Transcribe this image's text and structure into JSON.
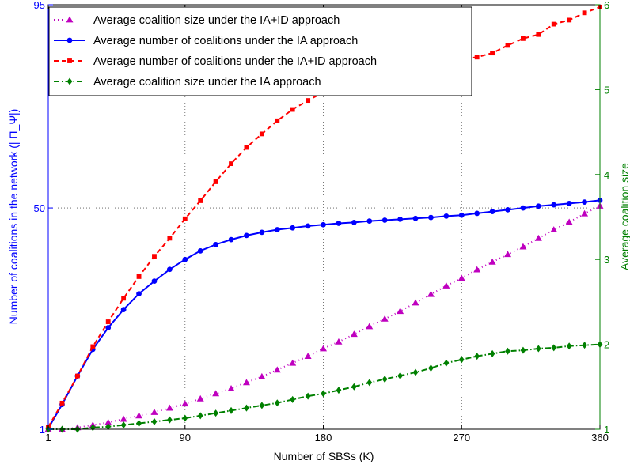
{
  "chart_data": {
    "type": "line",
    "xlabel": "Number of SBSs (K)",
    "ylabel_left": "Number of coalitions in the network (| Π_Ψ|)",
    "ylabel_right": "Average coalition size",
    "xlim": [
      1,
      360
    ],
    "ylim_left": [
      1,
      95
    ],
    "ylim_right": [
      1,
      6
    ],
    "x_ticks": [
      "1",
      "90",
      "180",
      "270",
      "360"
    ],
    "x_tick_values": [
      1,
      90,
      180,
      270,
      360
    ],
    "y_left_ticks": [
      "1",
      "50",
      "95"
    ],
    "y_left_tick_values": [
      1,
      50,
      95
    ],
    "y_right_ticks": [
      "1",
      "2",
      "3",
      "4",
      "5",
      "6"
    ],
    "y_right_tick_values": [
      1,
      2,
      3,
      4,
      5,
      6
    ],
    "grid": "dotted at x=90,180,270 and y=50",
    "legend_position": "top-left",
    "colors": {
      "left_axis": "#0000ff",
      "right_axis": "#008000",
      "plot_bg": "#ffffff"
    },
    "x": [
      1,
      10,
      20,
      30,
      40,
      50,
      60,
      70,
      80,
      90,
      100,
      110,
      120,
      130,
      140,
      150,
      160,
      170,
      180,
      190,
      200,
      210,
      220,
      230,
      240,
      250,
      260,
      270,
      280,
      290,
      300,
      310,
      320,
      330,
      340,
      350,
      360
    ],
    "series": [
      {
        "name": "Average coalition size under the IA+ID approach",
        "axis": "right",
        "color": "#bf00bf",
        "marker": "triangle",
        "dash": "1,4",
        "values": [
          1.0,
          1.0,
          1.02,
          1.05,
          1.08,
          1.12,
          1.16,
          1.2,
          1.25,
          1.3,
          1.36,
          1.42,
          1.48,
          1.55,
          1.62,
          1.7,
          1.78,
          1.86,
          1.95,
          2.03,
          2.12,
          2.21,
          2.3,
          2.39,
          2.49,
          2.59,
          2.69,
          2.78,
          2.88,
          2.97,
          3.06,
          3.15,
          3.25,
          3.35,
          3.44,
          3.54,
          3.63
        ]
      },
      {
        "name": "Average number of coalitions under the IA approach",
        "axis": "left",
        "color": "#0000ff",
        "marker": "circle",
        "dash": "",
        "values": [
          1.2,
          6.5,
          12.8,
          18.7,
          23.5,
          27.5,
          31.0,
          33.8,
          36.4,
          38.6,
          40.5,
          41.9,
          43.0,
          43.9,
          44.6,
          45.2,
          45.6,
          46.0,
          46.3,
          46.6,
          46.8,
          47.1,
          47.3,
          47.5,
          47.7,
          47.9,
          48.2,
          48.4,
          48.8,
          49.2,
          49.6,
          50.0,
          50.4,
          50.7,
          51.0,
          51.3,
          51.7
        ]
      },
      {
        "name": "Average number of coalitions under the IA+ID approach",
        "axis": "left",
        "color": "#ff0000",
        "marker": "square",
        "dash": "6,4",
        "values": [
          1.5,
          6.8,
          12.8,
          19.3,
          24.8,
          30.0,
          34.8,
          39.3,
          43.3,
          47.6,
          51.6,
          55.8,
          59.8,
          63.4,
          66.4,
          69.3,
          71.8,
          73.8,
          75.6,
          77.1,
          78.2,
          79.1,
          80.0,
          80.8,
          81.5,
          82.0,
          82.5,
          82.9,
          83.4,
          84.3,
          86.0,
          87.5,
          88.4,
          90.7,
          91.6,
          93.2,
          94.5
        ]
      },
      {
        "name": "Average coalition size under the IA approach",
        "axis": "right",
        "color": "#008000",
        "marker": "diamond",
        "dash": "7,3,1.5,3",
        "values": [
          1.0,
          1.0,
          1.0,
          1.02,
          1.03,
          1.05,
          1.07,
          1.09,
          1.11,
          1.13,
          1.16,
          1.19,
          1.22,
          1.25,
          1.28,
          1.31,
          1.35,
          1.39,
          1.42,
          1.46,
          1.5,
          1.55,
          1.59,
          1.63,
          1.67,
          1.72,
          1.78,
          1.82,
          1.86,
          1.89,
          1.92,
          1.93,
          1.95,
          1.96,
          1.98,
          1.99,
          2.0
        ]
      }
    ]
  }
}
